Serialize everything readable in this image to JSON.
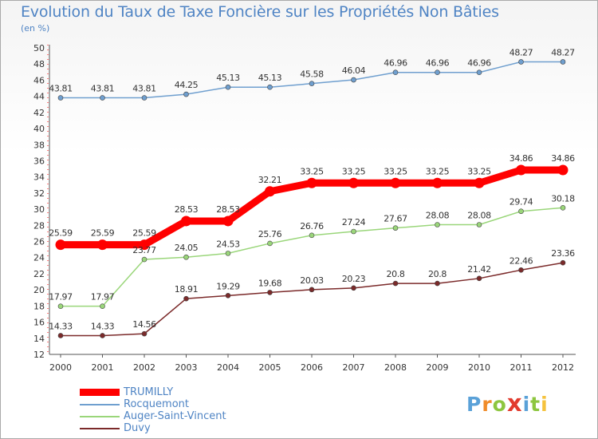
{
  "header": {
    "title": "Evolution du Taux de Taxe Foncière sur les Propriétés Non Bâties",
    "subtitle": "(en %)"
  },
  "logo": {
    "chars": [
      "P",
      "r",
      "o",
      "x",
      "i",
      "t",
      "i"
    ],
    "colors": [
      "#5aa1d8",
      "#f08c2a",
      "#8dc63f",
      "#e23b2e",
      "#5aa1d8",
      "#8dc63f",
      "#f5c23d"
    ]
  },
  "chart_data": {
    "type": "line",
    "title": "Evolution du Taux de Taxe Foncière sur les Propriétés Non Bâties",
    "ylabel": "(en %)",
    "xlabel": "",
    "ylim": [
      12,
      50
    ],
    "yticks": [
      "12",
      "14",
      "16",
      "18",
      "20",
      "22",
      "24",
      "26",
      "28",
      "30",
      "32",
      "34",
      "36",
      "38",
      "40",
      "42",
      "44",
      "46",
      "48",
      "50"
    ],
    "categories": [
      "2000",
      "2001",
      "2002",
      "2003",
      "2004",
      "2005",
      "2006",
      "2007",
      "2008",
      "2009",
      "2010",
      "2011",
      "2012"
    ],
    "grid": false,
    "legend_position": "bottom-left",
    "series": [
      {
        "name": "TRUMILLY",
        "color": "#ff0000",
        "values": [
          25.59,
          25.59,
          25.59,
          28.53,
          28.53,
          32.21,
          33.25,
          33.25,
          33.25,
          33.25,
          33.25,
          34.86,
          34.86
        ],
        "labels": [
          "25.59",
          "25.59",
          "25.59",
          "28.53",
          "28.53",
          "32.21",
          "33.25",
          "33.25",
          "33.25",
          "33.25",
          "33.25",
          "34.86",
          "34.86"
        ]
      },
      {
        "name": "Rocquemont",
        "color": "#6f9fcf",
        "values": [
          43.81,
          43.81,
          43.81,
          44.25,
          45.13,
          45.13,
          45.58,
          46.04,
          46.96,
          46.96,
          46.96,
          48.27,
          48.27
        ],
        "labels": [
          "43.81",
          "43.81",
          "43.81",
          "44.25",
          "45.13",
          "45.13",
          "45.58",
          "46.04",
          "46.96",
          "46.96",
          "46.96",
          "48.27",
          "48.27"
        ]
      },
      {
        "name": "Auger-Saint-Vincent",
        "color": "#9ad67a",
        "values": [
          17.97,
          17.97,
          23.77,
          24.05,
          24.53,
          25.76,
          26.76,
          27.24,
          27.67,
          28.08,
          28.08,
          29.74,
          30.18
        ],
        "labels": [
          "17.97",
          "17.97",
          "23.77",
          "24.05",
          "24.53",
          "25.76",
          "26.76",
          "27.24",
          "27.67",
          "28.08",
          "28.08",
          "29.74",
          "30.18"
        ]
      },
      {
        "name": "Duvy",
        "color": "#7b2a2a",
        "values": [
          14.33,
          14.33,
          14.56,
          18.91,
          19.29,
          19.68,
          20.03,
          20.23,
          20.8,
          20.8,
          21.42,
          22.46,
          23.36
        ],
        "labels": [
          "14.33",
          "14.33",
          "14.56",
          "18.91",
          "19.29",
          "19.68",
          "20.03",
          "20.23",
          "20.8",
          "20.8",
          "21.42",
          "22.46",
          "23.36"
        ]
      }
    ]
  }
}
